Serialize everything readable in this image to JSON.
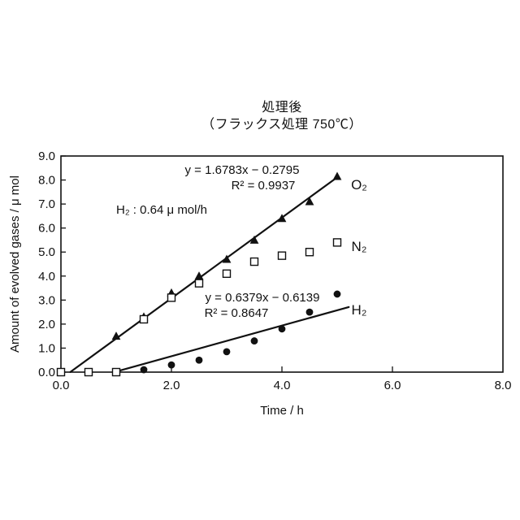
{
  "page": {
    "background": "#ffffff",
    "ink": "#111111"
  },
  "title": {
    "line1": "処理後",
    "line2": "（フラックス処理 750℃）"
  },
  "chart_data": {
    "type": "scatter",
    "title": "処理後（フラックス処理 750℃）",
    "xlabel": "Time / h",
    "ylabel": "Amount of evolved gases / μ mol",
    "xlim": [
      0.0,
      8.0
    ],
    "ylim": [
      0.0,
      9.0
    ],
    "x_tick_values": [
      0,
      2,
      4,
      6,
      8
    ],
    "x_tick_labels": [
      "0.0",
      "2.0",
      "4.0",
      "6.0",
      "8.0"
    ],
    "y_tick_values": [
      0,
      1,
      2,
      3,
      4,
      5,
      6,
      7,
      8,
      9
    ],
    "y_tick_labels": [
      "0.0",
      "1.0",
      "2.0",
      "3.0",
      "4.0",
      "5.0",
      "6.0",
      "7.0",
      "8.0",
      "9.0"
    ],
    "grid": false,
    "frame": "closed-box",
    "marker_color": "#111111",
    "series": [
      {
        "id": "O2",
        "label": "O₂",
        "marker": "triangle-filled",
        "points": [
          [
            1.0,
            1.5
          ],
          [
            1.5,
            2.3
          ],
          [
            2.0,
            3.3
          ],
          [
            2.5,
            4.0
          ],
          [
            3.0,
            4.7
          ],
          [
            3.5,
            5.5
          ],
          [
            4.0,
            6.4
          ],
          [
            4.5,
            7.1
          ],
          [
            5.0,
            8.15
          ]
        ],
        "trendline": {
          "equation": "y = 1.6783x − 0.2795",
          "r2": "R² = 0.9937",
          "slope": 1.6783,
          "intercept": -0.2795,
          "x_range": [
            0.17,
            5.02
          ]
        }
      },
      {
        "id": "N2",
        "label": "N₂",
        "marker": "square-open",
        "points": [
          [
            0.0,
            0.0
          ],
          [
            0.5,
            0.0
          ],
          [
            1.0,
            0.0
          ],
          [
            1.5,
            2.2
          ],
          [
            2.0,
            3.1
          ],
          [
            2.5,
            3.7
          ],
          [
            3.0,
            4.1
          ],
          [
            3.5,
            4.6
          ],
          [
            4.0,
            4.85
          ],
          [
            4.5,
            5.0
          ],
          [
            5.0,
            5.4
          ]
        ]
      },
      {
        "id": "H2",
        "label": "H₂",
        "marker": "circle-filled",
        "points": [
          [
            1.5,
            0.1
          ],
          [
            2.0,
            0.3
          ],
          [
            2.5,
            0.5
          ],
          [
            3.0,
            0.85
          ],
          [
            3.5,
            1.3
          ],
          [
            4.0,
            1.8
          ],
          [
            4.5,
            2.5
          ],
          [
            5.0,
            3.25
          ]
        ],
        "trendline": {
          "equation": "y = 0.6379x − 0.6139",
          "r2": "R² = 0.8647",
          "slope": 0.6379,
          "intercept": -0.6139,
          "x_range": [
            0.96,
            5.21
          ]
        }
      }
    ],
    "annotations": [
      {
        "id": "h2_rate",
        "text": "H₂ : 0.64 μ mol/h"
      }
    ]
  }
}
